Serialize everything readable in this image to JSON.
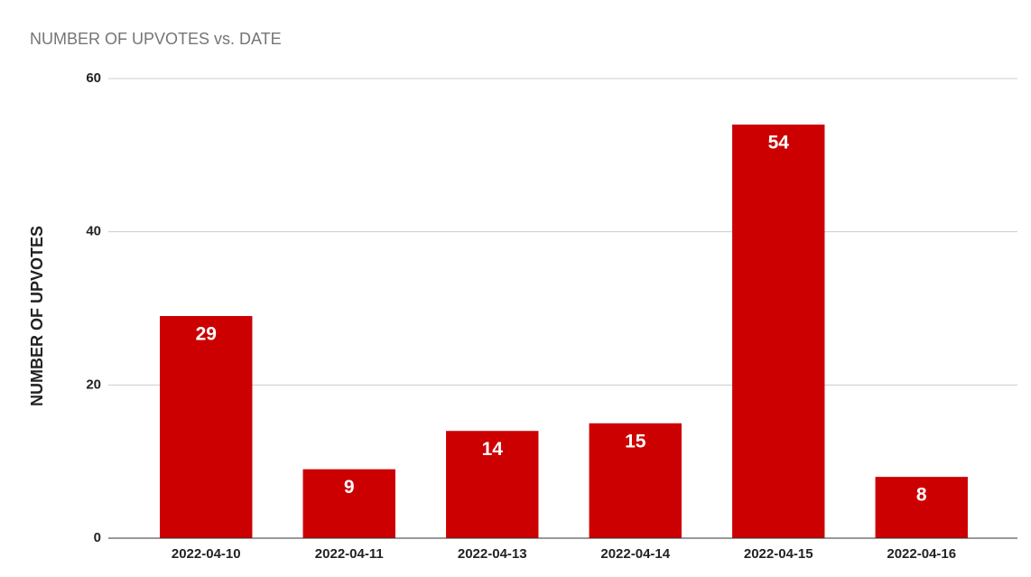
{
  "chart_data": {
    "type": "bar",
    "title": "NUMBER OF UPVOTES vs. DATE",
    "y_label": "NUMBER OF UPVOTES",
    "categories": [
      "2022-04-10",
      "2022-04-11",
      "2022-04-13",
      "2022-04-14",
      "2022-04-15",
      "2022-04-16"
    ],
    "values": [
      29,
      9,
      14,
      15,
      54,
      8
    ],
    "color": "#cc0000",
    "ylim": [
      0,
      60
    ],
    "yticks": [
      0,
      20,
      40,
      60
    ],
    "grid": true
  }
}
